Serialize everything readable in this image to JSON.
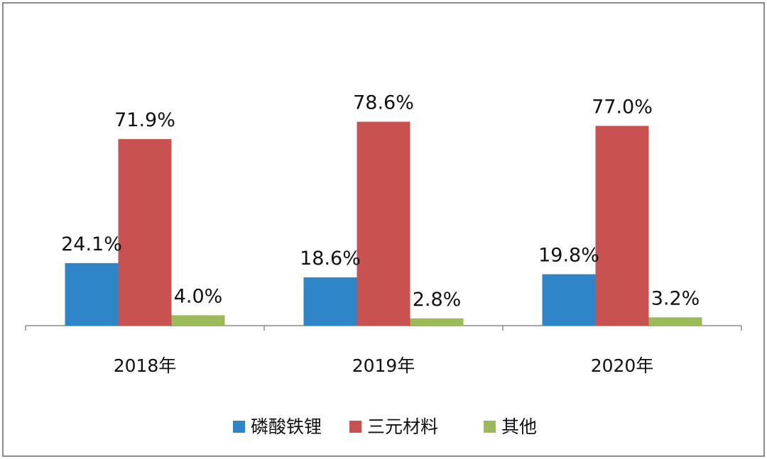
{
  "chart_data": {
    "type": "bar",
    "categories": [
      "2018年",
      "2019年",
      "2020年"
    ],
    "series": [
      {
        "name": "磷酸铁锂",
        "color": "#2e86c8",
        "values": [
          24.1,
          18.6,
          19.8
        ],
        "labels": [
          "24.1%",
          "18.6%",
          "19.8%"
        ]
      },
      {
        "name": "三元材料",
        "color": "#c85250",
        "values": [
          71.9,
          78.6,
          77.0
        ],
        "labels": [
          "71.9%",
          "78.6%",
          "77.0%"
        ]
      },
      {
        "name": "其他",
        "color": "#9bbb59",
        "values": [
          4.0,
          2.8,
          3.2
        ],
        "labels": [
          "4.0%",
          "2.8%",
          "3.2%"
        ]
      }
    ],
    "unit": "%",
    "ylim": [
      0,
      100
    ],
    "grid": false,
    "legend": "bottom"
  }
}
